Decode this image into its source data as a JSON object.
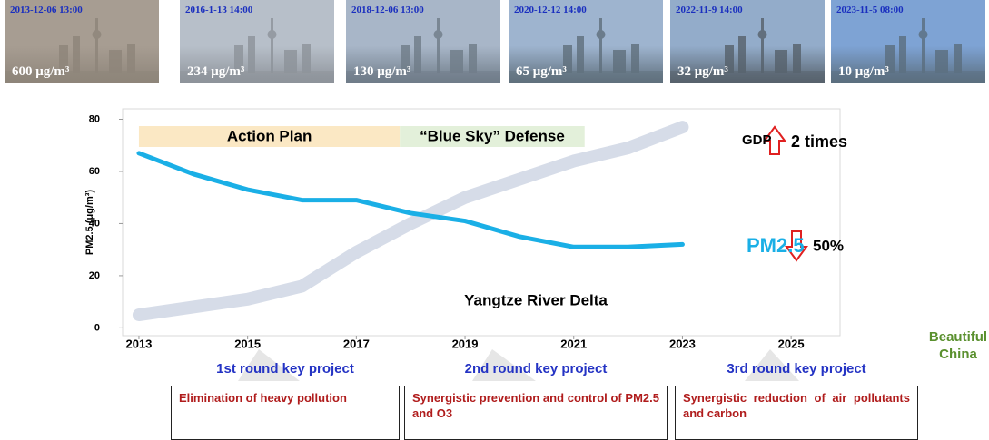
{
  "photos": [
    {
      "time": "2013-12-06 13:00",
      "pm25": "600 μg/m³"
    },
    {
      "time": "2016-1-13 14:00",
      "pm25": "234 μg/m³"
    },
    {
      "time": "2018-12-06 13:00",
      "pm25": "130 μg/m³"
    },
    {
      "time": "2020-12-12 14:00",
      "pm25": "65 μg/m³"
    },
    {
      "time": "2022-11-9 14:00",
      "pm25": "32 μg/m³"
    },
    {
      "time": "2023-11-5 08:00",
      "pm25": "10 μg/m³"
    }
  ],
  "chart_data": {
    "type": "line",
    "y_label": "PM2.5 (μg/m³)",
    "x": [
      2013,
      2014,
      2015,
      2016,
      2017,
      2018,
      2019,
      2020,
      2021,
      2022,
      2023
    ],
    "series": [
      {
        "name": "GDP",
        "color": "#d6dce8",
        "values": [
          5,
          8,
          11,
          16,
          29,
          40,
          50,
          57,
          64,
          69,
          77
        ]
      },
      {
        "name": "PM2.5",
        "color": "#1aafe6",
        "values": [
          67,
          59,
          53,
          49,
          49,
          44,
          41,
          35,
          31,
          31,
          32
        ]
      }
    ],
    "xlim": [
      2012.7,
      2025.9
    ],
    "ylim": [
      -3,
      84
    ],
    "xticks": [
      2013,
      2015,
      2017,
      2019,
      2021,
      2023,
      2025
    ],
    "yticks": [
      0,
      20,
      40,
      60,
      80
    ],
    "phases": [
      {
        "label": "Action Plan",
        "start": 2013,
        "end": 2017.8,
        "color": "#fbe8c4"
      },
      {
        "label": "“Blue Sky” Defense",
        "start": 2017.8,
        "end": 2021.2,
        "color": "#e3f0da"
      }
    ],
    "gdp_change": "2 times",
    "pm25_change": "50%",
    "region": "Yangtze River Delta",
    "goal": "Beautiful China"
  },
  "projects": [
    {
      "title": "1st round key project",
      "description": "Elimination of heavy pollution"
    },
    {
      "title": "2nd round key project",
      "description": "Synergistic prevention and control of PM2.5 and O3"
    },
    {
      "title": "3rd round key project",
      "description": "Synergistic reduction of air pollutants and carbon"
    }
  ]
}
